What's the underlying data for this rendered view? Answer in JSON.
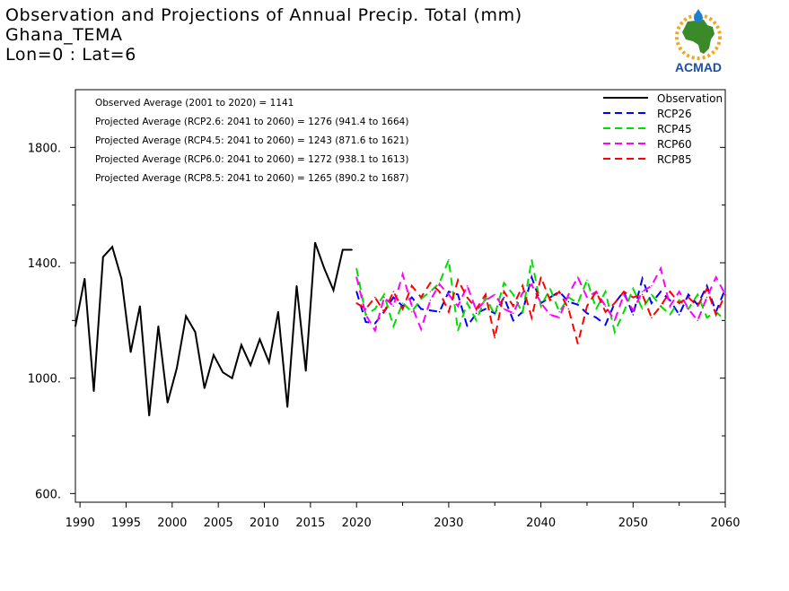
{
  "titles": {
    "line1": "Observation and Projections of Annual Precip. Total (mm)",
    "line2": "Ghana_TEMA",
    "line3": "Lon=0 : Lat=6"
  },
  "logo": {
    "text": "ACMAD",
    "colors": {
      "africa": "#3a8a2a",
      "sun": "#f2a81d",
      "drop": "#1e7fd0",
      "text": "#1b4fa6"
    }
  },
  "annotations": [
    "Observed Average (2001 to 2020) = 1141",
    "Projected Average (RCP2.6: 2041 to 2060) = 1276 (941.4 to 1664)",
    "Projected Average (RCP4.5: 2041 to 2060) = 1243 (871.6 to 1621)",
    "Projected Average (RCP6.0: 2041 to 2060) = 1272 (938.1 to 1613)",
    "Projected Average (RCP8.5: 2041 to 2060) = 1265 (890.2 to 1687)"
  ],
  "chart_data": {
    "type": "line",
    "title": "Observation and Projections of Annual Precip. Total (mm)",
    "xlabel": "",
    "ylabel": "",
    "xlim": [
      1989.5,
      2060
    ],
    "ylim": [
      570,
      2000
    ],
    "y_ticks": [
      600,
      1000,
      1400,
      1800
    ],
    "y_tick_labels": [
      "600.",
      "1000.",
      "1400.",
      "1800."
    ],
    "x_ticks": [
      1990,
      1995,
      2000,
      2005,
      2010,
      2015,
      2020,
      2030,
      2040,
      2050,
      2060
    ],
    "x_tick_labels": [
      "1990",
      "1995",
      "2000",
      "2005",
      "2010",
      "2015",
      "2020",
      "2030",
      "2040",
      "2050",
      "2060"
    ],
    "grid": false,
    "legend_position": "top-right",
    "series": [
      {
        "name": "Observation",
        "color": "#000000",
        "style": "solid",
        "x": [
          1989.5,
          1990.5,
          1991.5,
          1992.5,
          1993.5,
          1994.5,
          1995.5,
          1996.5,
          1997.5,
          1998.5,
          1999.5,
          2000.5,
          2001.5,
          2002.5,
          2003.5,
          2004.5,
          2005.5,
          2006.5,
          2007.5,
          2008.5,
          2009.5,
          2010.5,
          2011.5,
          2012.5,
          2013.5,
          2014.5,
          2015.5,
          2016.5,
          2017.5,
          2018.5,
          2019.5
        ],
        "values": [
          1180,
          1345,
          955,
          1420,
          1455,
          1345,
          1090,
          1250,
          870,
          1180,
          915,
          1035,
          1215,
          1160,
          965,
          1080,
          1020,
          1000,
          1115,
          1045,
          1135,
          1055,
          1230,
          900,
          1320,
          1025,
          1470,
          1380,
          1305,
          1445,
          1445
        ]
      },
      {
        "name": "RCP26",
        "color": "#0000ff",
        "style": "dashed",
        "x": [
          2020,
          2021,
          2022,
          2023,
          2024,
          2025,
          2026,
          2027,
          2028,
          2029,
          2030,
          2031,
          2032,
          2033,
          2034,
          2035,
          2036,
          2037,
          2038,
          2039,
          2040,
          2041,
          2042,
          2043,
          2044,
          2045,
          2046,
          2047,
          2048,
          2049,
          2050,
          2051,
          2052,
          2053,
          2054,
          2055,
          2056,
          2057,
          2058,
          2059,
          2060
        ],
        "values": [
          1300,
          1195,
          1190,
          1230,
          1280,
          1250,
          1280,
          1240,
          1235,
          1230,
          1300,
          1290,
          1180,
          1225,
          1240,
          1225,
          1280,
          1200,
          1230,
          1350,
          1260,
          1280,
          1300,
          1265,
          1255,
          1225,
          1210,
          1185,
          1260,
          1300,
          1220,
          1345,
          1260,
          1300,
          1270,
          1220,
          1290,
          1255,
          1320,
          1230,
          1310
        ]
      },
      {
        "name": "RCP45",
        "color": "#00dd00",
        "style": "dashed",
        "x": [
          2020,
          2021,
          2022,
          2023,
          2024,
          2025,
          2026,
          2027,
          2028,
          2029,
          2030,
          2031,
          2032,
          2033,
          2034,
          2035,
          2036,
          2037,
          2038,
          2039,
          2040,
          2041,
          2042,
          2043,
          2044,
          2045,
          2046,
          2047,
          2048,
          2049,
          2050,
          2051,
          2052,
          2053,
          2054,
          2055,
          2056,
          2057,
          2058,
          2059,
          2060
        ],
        "values": [
          1380,
          1220,
          1240,
          1290,
          1180,
          1260,
          1230,
          1275,
          1300,
          1330,
          1410,
          1165,
          1260,
          1200,
          1280,
          1220,
          1330,
          1290,
          1225,
          1410,
          1250,
          1310,
          1230,
          1280,
          1260,
          1340,
          1240,
          1300,
          1160,
          1230,
          1310,
          1240,
          1290,
          1250,
          1220,
          1270,
          1240,
          1290,
          1210,
          1230,
          1200
        ]
      },
      {
        "name": "RCP60",
        "color": "#ff00ff",
        "style": "dashed",
        "x": [
          2020,
          2021,
          2022,
          2023,
          2024,
          2025,
          2026,
          2027,
          2028,
          2029,
          2030,
          2031,
          2032,
          2033,
          2034,
          2035,
          2036,
          2037,
          2038,
          2039,
          2040,
          2041,
          2042,
          2043,
          2044,
          2045,
          2046,
          2047,
          2048,
          2049,
          2050,
          2051,
          2052,
          2053,
          2054,
          2055,
          2056,
          2057,
          2058,
          2059,
          2060
        ],
        "values": [
          1350,
          1220,
          1165,
          1280,
          1250,
          1360,
          1250,
          1170,
          1270,
          1325,
          1290,
          1250,
          1320,
          1235,
          1270,
          1290,
          1240,
          1225,
          1295,
          1325,
          1260,
          1220,
          1210,
          1290,
          1350,
          1280,
          1300,
          1250,
          1200,
          1290,
          1235,
          1300,
          1320,
          1380,
          1250,
          1300,
          1240,
          1200,
          1280,
          1350,
          1290
        ]
      },
      {
        "name": "RCP85",
        "color": "#ff0000",
        "style": "dashed",
        "x": [
          2020,
          2021,
          2022,
          2023,
          2024,
          2025,
          2026,
          2027,
          2028,
          2029,
          2030,
          2031,
          2032,
          2033,
          2034,
          2035,
          2036,
          2037,
          2038,
          2039,
          2040,
          2041,
          2042,
          2043,
          2044,
          2045,
          2046,
          2047,
          2048,
          2049,
          2050,
          2051,
          2052,
          2053,
          2054,
          2055,
          2056,
          2057,
          2058,
          2059,
          2060
        ],
        "values": [
          1260,
          1240,
          1280,
          1230,
          1300,
          1240,
          1320,
          1280,
          1330,
          1300,
          1230,
          1340,
          1280,
          1240,
          1290,
          1140,
          1300,
          1250,
          1320,
          1210,
          1350,
          1270,
          1300,
          1240,
          1120,
          1250,
          1300,
          1230,
          1260,
          1300,
          1280,
          1290,
          1210,
          1250,
          1300,
          1260,
          1280,
          1250,
          1310,
          1220,
          1290
        ]
      }
    ]
  }
}
